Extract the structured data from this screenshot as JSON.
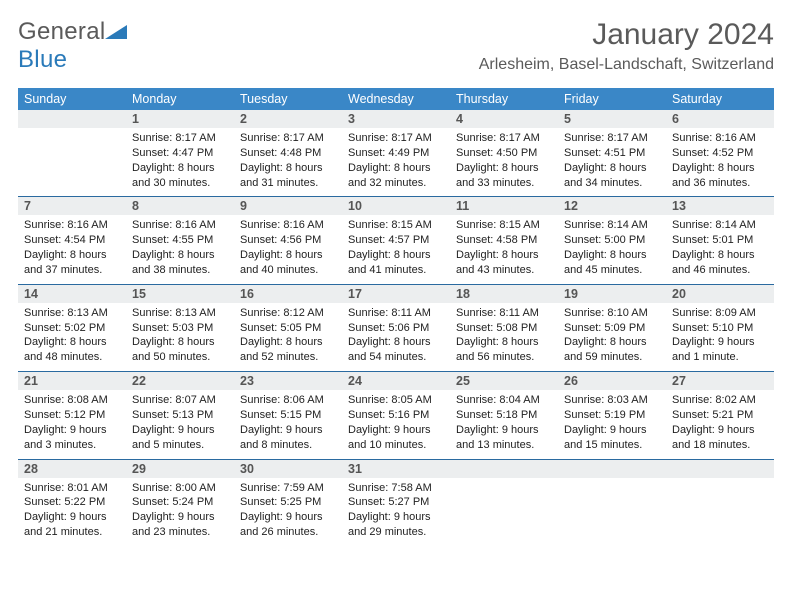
{
  "logo": {
    "text_general": "General",
    "text_blue": "Blue",
    "triangle_color": "#2a7ab9"
  },
  "title": "January 2024",
  "location": "Arlesheim, Basel-Landschaft, Switzerland",
  "colors": {
    "header_bg": "#3a87c7",
    "header_fg": "#ffffff",
    "daynum_bg": "#eceeef",
    "daynum_fg": "#555555",
    "detail_fg": "#222222",
    "row_border": "#2a6aa0",
    "title_fg": "#5a5a5a"
  },
  "fonts": {
    "title_size_pt": 22,
    "location_size_pt": 12,
    "header_size_pt": 9,
    "body_size_pt": 8
  },
  "weekdays": [
    "Sunday",
    "Monday",
    "Tuesday",
    "Wednesday",
    "Thursday",
    "Friday",
    "Saturday"
  ],
  "weeks": [
    {
      "nums": [
        "",
        "1",
        "2",
        "3",
        "4",
        "5",
        "6"
      ],
      "cells": [
        {},
        {
          "sunrise": "Sunrise: 8:17 AM",
          "sunset": "Sunset: 4:47 PM",
          "d1": "Daylight: 8 hours",
          "d2": "and 30 minutes."
        },
        {
          "sunrise": "Sunrise: 8:17 AM",
          "sunset": "Sunset: 4:48 PM",
          "d1": "Daylight: 8 hours",
          "d2": "and 31 minutes."
        },
        {
          "sunrise": "Sunrise: 8:17 AM",
          "sunset": "Sunset: 4:49 PM",
          "d1": "Daylight: 8 hours",
          "d2": "and 32 minutes."
        },
        {
          "sunrise": "Sunrise: 8:17 AM",
          "sunset": "Sunset: 4:50 PM",
          "d1": "Daylight: 8 hours",
          "d2": "and 33 minutes."
        },
        {
          "sunrise": "Sunrise: 8:17 AM",
          "sunset": "Sunset: 4:51 PM",
          "d1": "Daylight: 8 hours",
          "d2": "and 34 minutes."
        },
        {
          "sunrise": "Sunrise: 8:16 AM",
          "sunset": "Sunset: 4:52 PM",
          "d1": "Daylight: 8 hours",
          "d2": "and 36 minutes."
        }
      ]
    },
    {
      "nums": [
        "7",
        "8",
        "9",
        "10",
        "11",
        "12",
        "13"
      ],
      "cells": [
        {
          "sunrise": "Sunrise: 8:16 AM",
          "sunset": "Sunset: 4:54 PM",
          "d1": "Daylight: 8 hours",
          "d2": "and 37 minutes."
        },
        {
          "sunrise": "Sunrise: 8:16 AM",
          "sunset": "Sunset: 4:55 PM",
          "d1": "Daylight: 8 hours",
          "d2": "and 38 minutes."
        },
        {
          "sunrise": "Sunrise: 8:16 AM",
          "sunset": "Sunset: 4:56 PM",
          "d1": "Daylight: 8 hours",
          "d2": "and 40 minutes."
        },
        {
          "sunrise": "Sunrise: 8:15 AM",
          "sunset": "Sunset: 4:57 PM",
          "d1": "Daylight: 8 hours",
          "d2": "and 41 minutes."
        },
        {
          "sunrise": "Sunrise: 8:15 AM",
          "sunset": "Sunset: 4:58 PM",
          "d1": "Daylight: 8 hours",
          "d2": "and 43 minutes."
        },
        {
          "sunrise": "Sunrise: 8:14 AM",
          "sunset": "Sunset: 5:00 PM",
          "d1": "Daylight: 8 hours",
          "d2": "and 45 minutes."
        },
        {
          "sunrise": "Sunrise: 8:14 AM",
          "sunset": "Sunset: 5:01 PM",
          "d1": "Daylight: 8 hours",
          "d2": "and 46 minutes."
        }
      ]
    },
    {
      "nums": [
        "14",
        "15",
        "16",
        "17",
        "18",
        "19",
        "20"
      ],
      "cells": [
        {
          "sunrise": "Sunrise: 8:13 AM",
          "sunset": "Sunset: 5:02 PM",
          "d1": "Daylight: 8 hours",
          "d2": "and 48 minutes."
        },
        {
          "sunrise": "Sunrise: 8:13 AM",
          "sunset": "Sunset: 5:03 PM",
          "d1": "Daylight: 8 hours",
          "d2": "and 50 minutes."
        },
        {
          "sunrise": "Sunrise: 8:12 AM",
          "sunset": "Sunset: 5:05 PM",
          "d1": "Daylight: 8 hours",
          "d2": "and 52 minutes."
        },
        {
          "sunrise": "Sunrise: 8:11 AM",
          "sunset": "Sunset: 5:06 PM",
          "d1": "Daylight: 8 hours",
          "d2": "and 54 minutes."
        },
        {
          "sunrise": "Sunrise: 8:11 AM",
          "sunset": "Sunset: 5:08 PM",
          "d1": "Daylight: 8 hours",
          "d2": "and 56 minutes."
        },
        {
          "sunrise": "Sunrise: 8:10 AM",
          "sunset": "Sunset: 5:09 PM",
          "d1": "Daylight: 8 hours",
          "d2": "and 59 minutes."
        },
        {
          "sunrise": "Sunrise: 8:09 AM",
          "sunset": "Sunset: 5:10 PM",
          "d1": "Daylight: 9 hours",
          "d2": "and 1 minute."
        }
      ]
    },
    {
      "nums": [
        "21",
        "22",
        "23",
        "24",
        "25",
        "26",
        "27"
      ],
      "cells": [
        {
          "sunrise": "Sunrise: 8:08 AM",
          "sunset": "Sunset: 5:12 PM",
          "d1": "Daylight: 9 hours",
          "d2": "and 3 minutes."
        },
        {
          "sunrise": "Sunrise: 8:07 AM",
          "sunset": "Sunset: 5:13 PM",
          "d1": "Daylight: 9 hours",
          "d2": "and 5 minutes."
        },
        {
          "sunrise": "Sunrise: 8:06 AM",
          "sunset": "Sunset: 5:15 PM",
          "d1": "Daylight: 9 hours",
          "d2": "and 8 minutes."
        },
        {
          "sunrise": "Sunrise: 8:05 AM",
          "sunset": "Sunset: 5:16 PM",
          "d1": "Daylight: 9 hours",
          "d2": "and 10 minutes."
        },
        {
          "sunrise": "Sunrise: 8:04 AM",
          "sunset": "Sunset: 5:18 PM",
          "d1": "Daylight: 9 hours",
          "d2": "and 13 minutes."
        },
        {
          "sunrise": "Sunrise: 8:03 AM",
          "sunset": "Sunset: 5:19 PM",
          "d1": "Daylight: 9 hours",
          "d2": "and 15 minutes."
        },
        {
          "sunrise": "Sunrise: 8:02 AM",
          "sunset": "Sunset: 5:21 PM",
          "d1": "Daylight: 9 hours",
          "d2": "and 18 minutes."
        }
      ]
    },
    {
      "nums": [
        "28",
        "29",
        "30",
        "31",
        "",
        "",
        ""
      ],
      "cells": [
        {
          "sunrise": "Sunrise: 8:01 AM",
          "sunset": "Sunset: 5:22 PM",
          "d1": "Daylight: 9 hours",
          "d2": "and 21 minutes."
        },
        {
          "sunrise": "Sunrise: 8:00 AM",
          "sunset": "Sunset: 5:24 PM",
          "d1": "Daylight: 9 hours",
          "d2": "and 23 minutes."
        },
        {
          "sunrise": "Sunrise: 7:59 AM",
          "sunset": "Sunset: 5:25 PM",
          "d1": "Daylight: 9 hours",
          "d2": "and 26 minutes."
        },
        {
          "sunrise": "Sunrise: 7:58 AM",
          "sunset": "Sunset: 5:27 PM",
          "d1": "Daylight: 9 hours",
          "d2": "and 29 minutes."
        },
        {},
        {},
        {}
      ]
    }
  ]
}
